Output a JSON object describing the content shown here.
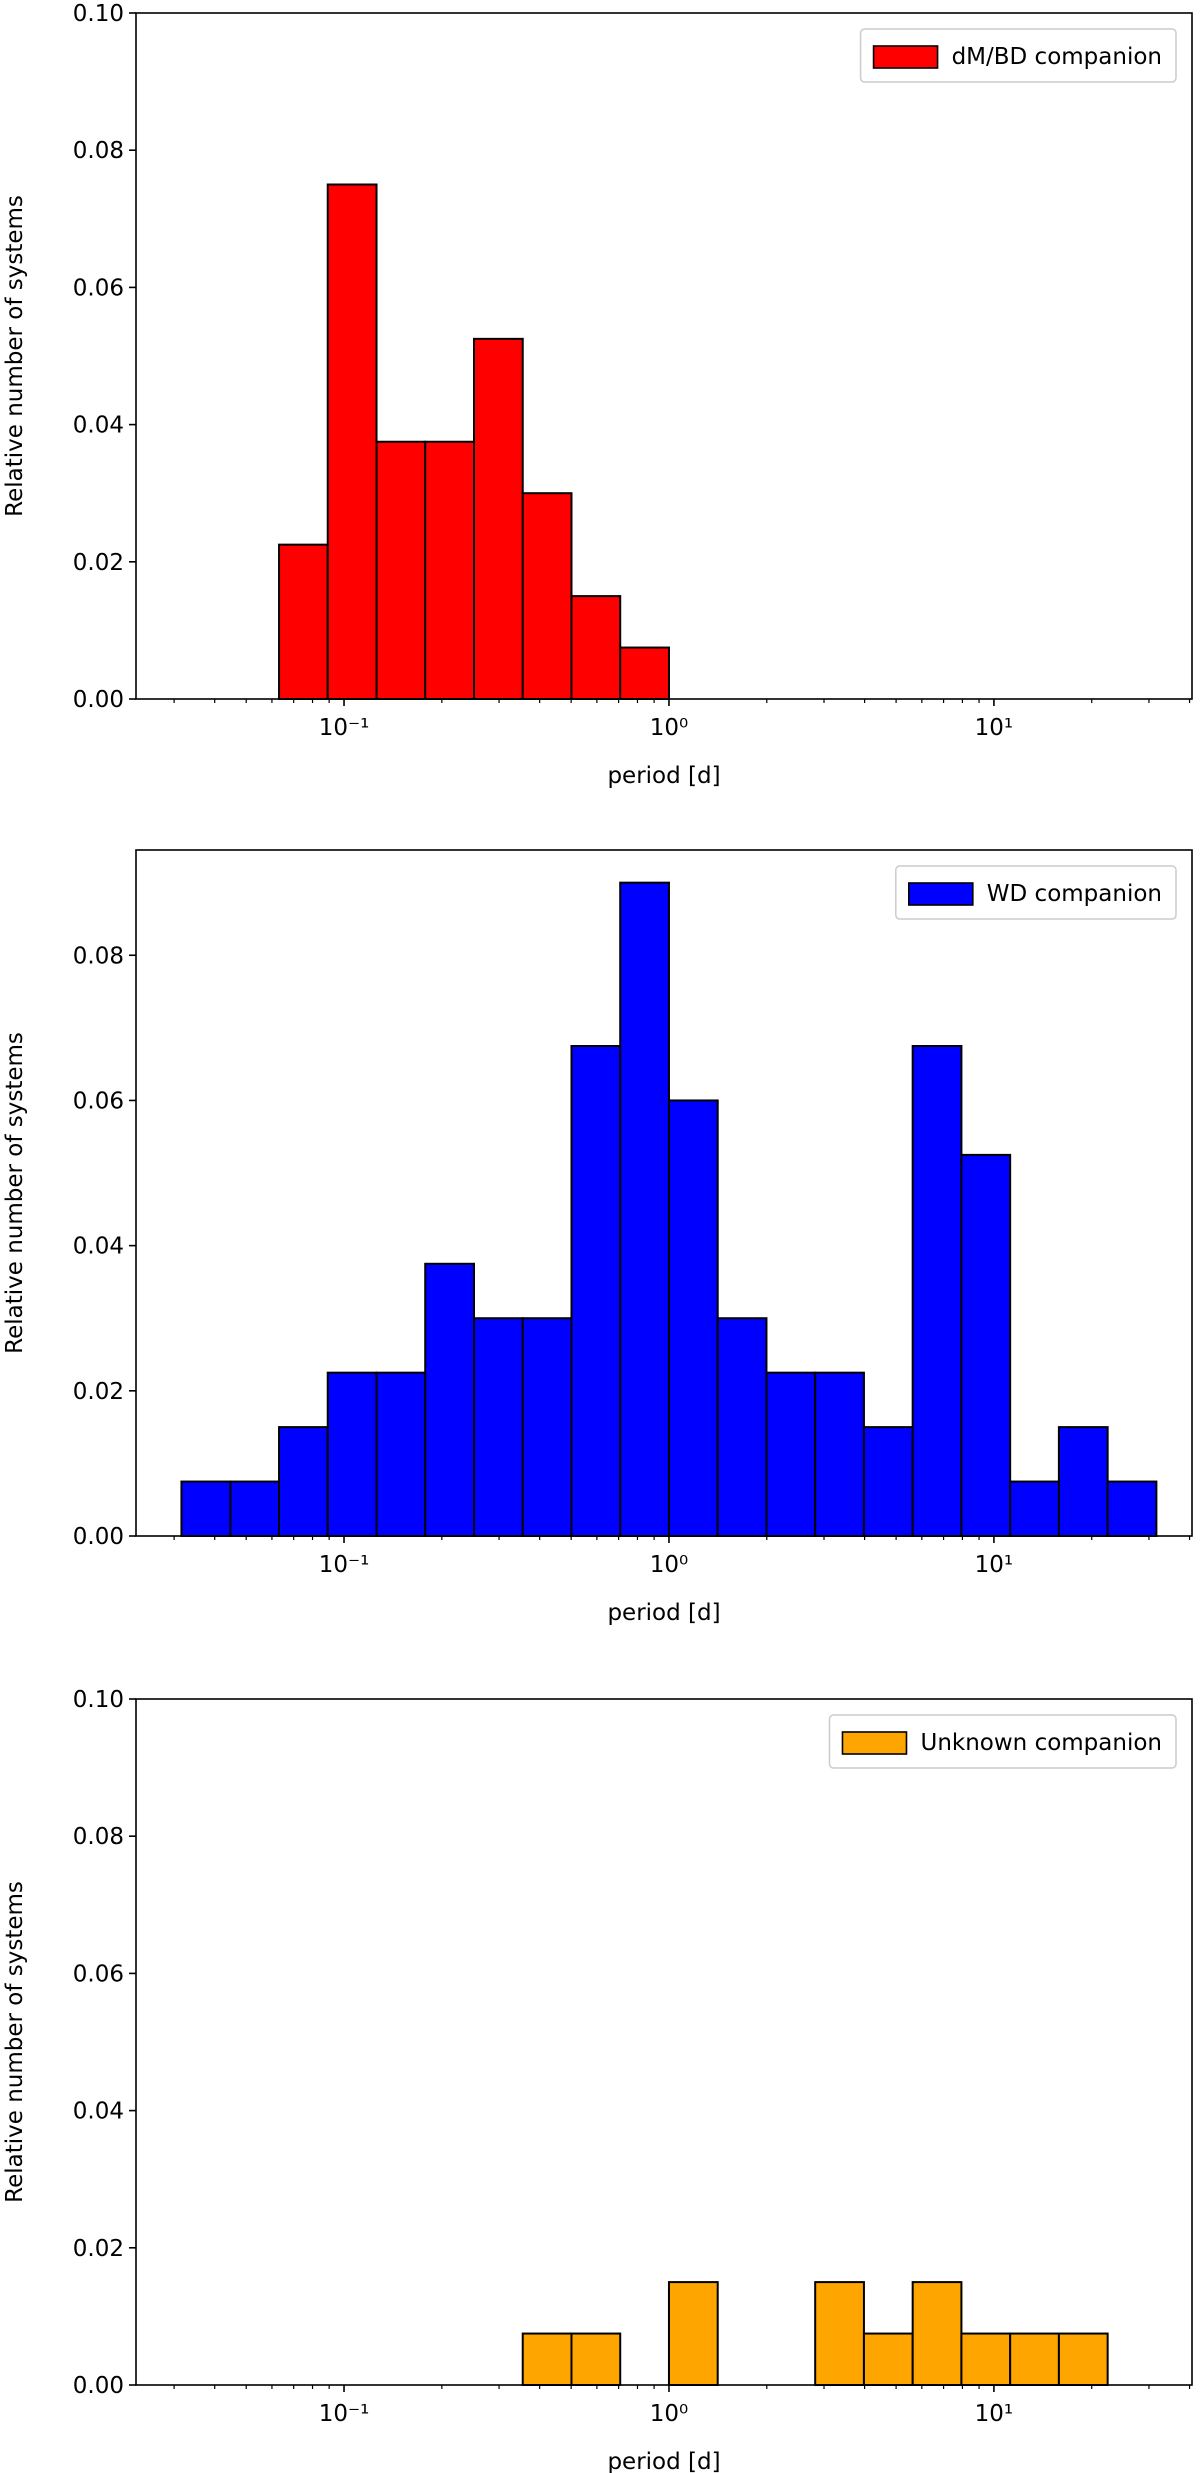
{
  "chart_data": [
    {
      "type": "histogram",
      "xscale": "log",
      "legend": "upper right",
      "xlabel": "period [d]",
      "ylabel": "Relative number of systems",
      "bins": [
        0.0316,
        0.0447,
        0.0631,
        0.0891,
        0.1259,
        0.1778,
        0.2512,
        0.3548,
        0.5012,
        0.7079,
        1.0,
        1.4125,
        1.9953,
        2.8184,
        3.9811,
        5.6234,
        7.9433,
        11.2202,
        15.8489,
        22.3872,
        31.6228
      ],
      "series": [
        {
          "name": "dM/BD companion",
          "color": "#ff0000",
          "values": [
            0,
            0,
            0.0225,
            0.075,
            0.0375,
            0.0375,
            0.0525,
            0.03,
            0.015,
            0.0075,
            0,
            0,
            0,
            0,
            0,
            0,
            0,
            0,
            0,
            0
          ]
        }
      ],
      "xlim": [
        0.0229,
        40.7
      ],
      "ylim": [
        0,
        0.1
      ],
      "xticks": [
        {
          "value": 0.1,
          "label": "10⁻¹"
        },
        {
          "value": 1,
          "label": "10⁰"
        },
        {
          "value": 10,
          "label": "10¹"
        }
      ],
      "xminorticks": [
        0.03,
        0.04,
        0.05,
        0.06,
        0.07,
        0.08,
        0.09,
        0.2,
        0.3,
        0.4,
        0.5,
        0.6,
        0.7,
        0.8,
        0.9,
        2,
        3,
        4,
        5,
        6,
        7,
        8,
        9,
        20,
        30,
        40
      ],
      "yticks": [
        {
          "value": 0,
          "label": "0.00"
        },
        {
          "value": 0.02,
          "label": "0.02"
        },
        {
          "value": 0.04,
          "label": "0.04"
        },
        {
          "value": 0.06,
          "label": "0.06"
        },
        {
          "value": 0.08,
          "label": "0.08"
        },
        {
          "value": 0.1,
          "label": "0.10"
        }
      ]
    },
    {
      "type": "histogram",
      "xscale": "log",
      "legend": "upper right",
      "xlabel": "period [d]",
      "ylabel": "Relative number of systems",
      "bins": [
        0.0316,
        0.0447,
        0.0631,
        0.0891,
        0.1259,
        0.1778,
        0.2512,
        0.3548,
        0.5012,
        0.7079,
        1.0,
        1.4125,
        1.9953,
        2.8184,
        3.9811,
        5.6234,
        7.9433,
        11.2202,
        15.8489,
        22.3872,
        31.6228
      ],
      "series": [
        {
          "name": "WD companion",
          "color": "#0000ff",
          "values": [
            0.0075,
            0.0075,
            0.015,
            0.0225,
            0.0225,
            0.0375,
            0.03,
            0.03,
            0.0675,
            0.09,
            0.06,
            0.03,
            0.0225,
            0.0225,
            0.015,
            0.0675,
            0.0525,
            0.0075,
            0.015,
            0.0075
          ]
        }
      ],
      "xlim": [
        0.0229,
        40.7
      ],
      "ylim": [
        0,
        0.0945
      ],
      "xticks": [
        {
          "value": 0.1,
          "label": "10⁻¹"
        },
        {
          "value": 1,
          "label": "10⁰"
        },
        {
          "value": 10,
          "label": "10¹"
        }
      ],
      "xminorticks": [
        0.03,
        0.04,
        0.05,
        0.06,
        0.07,
        0.08,
        0.09,
        0.2,
        0.3,
        0.4,
        0.5,
        0.6,
        0.7,
        0.8,
        0.9,
        2,
        3,
        4,
        5,
        6,
        7,
        8,
        9,
        20,
        30,
        40
      ],
      "yticks": [
        {
          "value": 0,
          "label": "0.00"
        },
        {
          "value": 0.02,
          "label": "0.02"
        },
        {
          "value": 0.04,
          "label": "0.04"
        },
        {
          "value": 0.06,
          "label": "0.06"
        },
        {
          "value": 0.08,
          "label": "0.08"
        }
      ]
    },
    {
      "type": "histogram",
      "xscale": "log",
      "legend": "upper right",
      "xlabel": "period [d]",
      "ylabel": "Relative number of systems",
      "bins": [
        0.0316,
        0.0447,
        0.0631,
        0.0891,
        0.1259,
        0.1778,
        0.2512,
        0.3548,
        0.5012,
        0.7079,
        1.0,
        1.4125,
        1.9953,
        2.8184,
        3.9811,
        5.6234,
        7.9433,
        11.2202,
        15.8489,
        22.3872,
        31.6228
      ],
      "series": [
        {
          "name": "Unknown companion",
          "color": "#ffa500",
          "values": [
            0,
            0,
            0,
            0,
            0,
            0,
            0,
            0.0075,
            0.0075,
            0,
            0.015,
            0,
            0,
            0.015,
            0.0075,
            0.015,
            0.0075,
            0.0075,
            0.0075,
            0
          ]
        }
      ],
      "xlim": [
        0.0229,
        40.7
      ],
      "ylim": [
        0,
        0.1
      ],
      "xticks": [
        {
          "value": 0.1,
          "label": "10⁻¹"
        },
        {
          "value": 1,
          "label": "10⁰"
        },
        {
          "value": 10,
          "label": "10¹"
        }
      ],
      "xminorticks": [
        0.03,
        0.04,
        0.05,
        0.06,
        0.07,
        0.08,
        0.09,
        0.2,
        0.3,
        0.4,
        0.5,
        0.6,
        0.7,
        0.8,
        0.9,
        2,
        3,
        4,
        5,
        6,
        7,
        8,
        9,
        20,
        30,
        40
      ],
      "yticks": [
        {
          "value": 0,
          "label": "0.00"
        },
        {
          "value": 0.02,
          "label": "0.02"
        },
        {
          "value": 0.04,
          "label": "0.04"
        },
        {
          "value": 0.06,
          "label": "0.06"
        },
        {
          "value": 0.08,
          "label": "0.08"
        },
        {
          "value": 0.1,
          "label": "0.10"
        }
      ]
    }
  ]
}
